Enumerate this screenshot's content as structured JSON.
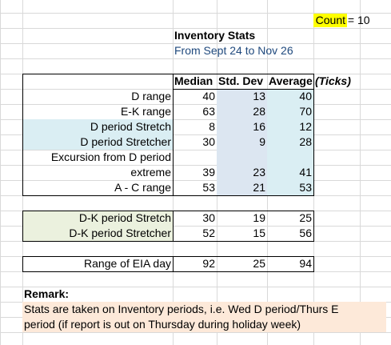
{
  "count": {
    "label": "Count",
    "equals": "=",
    "value": 10
  },
  "table": {
    "title": "Inventory Stats",
    "subtitle": "From Sept 24 to Nov 26",
    "header": [
      "Median",
      "Std. Dev",
      "Average",
      "(Ticks)"
    ],
    "groups": [
      [
        {
          "label": [
            "D range"
          ],
          "values": [
            40,
            13,
            40
          ]
        },
        {
          "label": [
            "E-K range"
          ],
          "values": [
            63,
            28,
            70
          ]
        },
        {
          "label": [
            "D period Stretch"
          ],
          "values": [
            8,
            16,
            12
          ]
        },
        {
          "label": [
            "D period Stretcher"
          ],
          "values": [
            30,
            9,
            28
          ]
        },
        {
          "label": [
            "Excursion from D period",
            "extreme"
          ],
          "values": [
            39,
            23,
            41
          ]
        },
        {
          "label": [
            "A - C range"
          ],
          "values": [
            53,
            21,
            53
          ]
        }
      ],
      [
        {
          "label": [
            "D-K period Stretch"
          ],
          "values": [
            30,
            19,
            25
          ]
        },
        {
          "label": [
            "D-K period Stretcher"
          ],
          "values": [
            52,
            15,
            56
          ]
        }
      ],
      [
        {
          "label": [
            "Range of EIA day"
          ],
          "values": [
            92,
            25,
            94
          ]
        }
      ]
    ]
  },
  "remark": {
    "title": "Remark:",
    "lines": [
      "Stats are taken on Inventory periods, i.e. Wed D period/Thurs E",
      "period (if report is out on Thursday during holiday week)"
    ]
  }
}
